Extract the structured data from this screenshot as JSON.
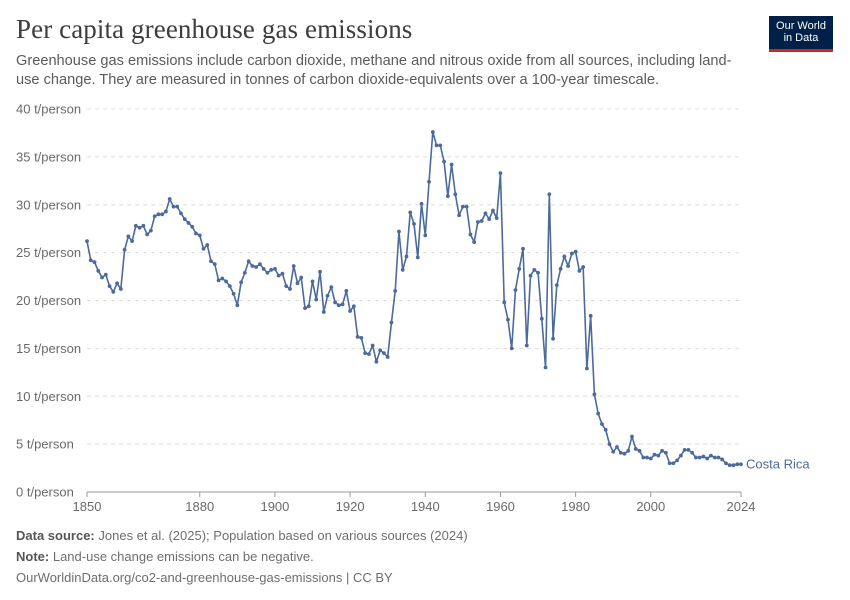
{
  "header": {
    "title": "Per capita greenhouse gas emissions",
    "subtitle": "Greenhouse gas emissions include carbon dioxide, methane and nitrous oxide from all sources, including land-use change. They are measured in tonnes of carbon dioxide-equivalents over a 100-year timescale."
  },
  "logo": {
    "line1": "Our World",
    "line2": "in Data",
    "bg_color": "#002147",
    "accent_color": "#ce261e"
  },
  "footer": {
    "source_label": "Data source:",
    "source_text": "Jones et al. (2025); Population based on various sources (2024)",
    "note_label": "Note:",
    "note_text": "Land-use change emissions can be negative.",
    "url_text": "OurWorldinData.org/co2-and-greenhouse-gas-emissions | CC BY"
  },
  "chart_data": {
    "type": "line",
    "xlabel": "",
    "ylabel": "",
    "xlim": [
      1850,
      2024
    ],
    "ylim": [
      0,
      40
    ],
    "x_ticks": [
      1850,
      1880,
      1900,
      1920,
      1940,
      1960,
      1980,
      2000,
      2024
    ],
    "y_ticks": [
      {
        "value": 0,
        "label": "0 t/person"
      },
      {
        "value": 5,
        "label": "5 t/person"
      },
      {
        "value": 10,
        "label": "10 t/person"
      },
      {
        "value": 15,
        "label": "15 t/person"
      },
      {
        "value": 20,
        "label": "20 t/person"
      },
      {
        "value": 25,
        "label": "25 t/person"
      },
      {
        "value": 30,
        "label": "30 t/person"
      },
      {
        "value": 35,
        "label": "35 t/person"
      },
      {
        "value": 40,
        "label": "40 t/person"
      }
    ],
    "grid": "horizontal-dashed",
    "series": [
      {
        "name": "Costa Rica",
        "color": "#4c6a9c",
        "x": [
          1850,
          1851,
          1852,
          1853,
          1854,
          1855,
          1856,
          1857,
          1858,
          1859,
          1860,
          1861,
          1862,
          1863,
          1864,
          1865,
          1866,
          1867,
          1868,
          1869,
          1870,
          1871,
          1872,
          1873,
          1874,
          1875,
          1876,
          1877,
          1878,
          1879,
          1880,
          1881,
          1882,
          1883,
          1884,
          1885,
          1886,
          1887,
          1888,
          1889,
          1890,
          1891,
          1892,
          1893,
          1894,
          1895,
          1896,
          1897,
          1898,
          1899,
          1900,
          1901,
          1902,
          1903,
          1904,
          1905,
          1906,
          1907,
          1908,
          1909,
          1910,
          1911,
          1912,
          1913,
          1914,
          1915,
          1916,
          1917,
          1918,
          1919,
          1920,
          1921,
          1922,
          1923,
          1924,
          1925,
          1926,
          1927,
          1928,
          1929,
          1930,
          1931,
          1932,
          1933,
          1934,
          1935,
          1936,
          1937,
          1938,
          1939,
          1940,
          1941,
          1942,
          1943,
          1944,
          1945,
          1946,
          1947,
          1948,
          1949,
          1950,
          1951,
          1952,
          1953,
          1954,
          1955,
          1956,
          1957,
          1958,
          1959,
          1960,
          1961,
          1962,
          1963,
          1964,
          1965,
          1966,
          1967,
          1968,
          1969,
          1970,
          1971,
          1972,
          1973,
          1974,
          1975,
          1976,
          1977,
          1978,
          1979,
          1980,
          1981,
          1982,
          1983,
          1984,
          1985,
          1986,
          1987,
          1988,
          1989,
          1990,
          1991,
          1992,
          1993,
          1994,
          1995,
          1996,
          1997,
          1998,
          1999,
          2000,
          2001,
          2002,
          2003,
          2004,
          2005,
          2006,
          2007,
          2008,
          2009,
          2010,
          2011,
          2012,
          2013,
          2014,
          2015,
          2016,
          2017,
          2018,
          2019,
          2020,
          2021,
          2022,
          2023,
          2024
        ],
        "values": [
          26.2,
          24.2,
          24.0,
          23.1,
          22.4,
          22.7,
          21.5,
          20.9,
          21.8,
          21.2,
          25.3,
          26.7,
          26.2,
          27.8,
          27.6,
          27.8,
          26.9,
          27.3,
          28.8,
          29.0,
          29.0,
          29.3,
          30.6,
          29.8,
          29.8,
          29.1,
          28.5,
          28.1,
          27.7,
          27.0,
          26.8,
          25.4,
          25.8,
          24.1,
          23.8,
          22.1,
          22.3,
          22.0,
          21.5,
          20.7,
          19.5,
          21.9,
          22.9,
          24.1,
          23.6,
          23.5,
          23.8,
          23.3,
          22.9,
          23.2,
          23.3,
          22.6,
          22.8,
          21.5,
          21.2,
          23.6,
          21.8,
          22.4,
          19.2,
          19.4,
          22.0,
          20.1,
          23.0,
          18.8,
          20.5,
          21.4,
          19.8,
          19.5,
          19.6,
          21.0,
          18.9,
          19.4,
          16.2,
          16.1,
          14.5,
          14.4,
          15.3,
          13.6,
          14.8,
          14.5,
          14.1,
          17.7,
          21.0,
          27.2,
          23.2,
          24.6,
          29.2,
          28.0,
          24.5,
          30.1,
          26.8,
          32.4,
          37.6,
          36.2,
          36.2,
          34.5,
          30.9,
          34.2,
          31.1,
          28.9,
          29.8,
          29.8,
          26.9,
          26.1,
          28.2,
          28.3,
          29.1,
          28.5,
          29.4,
          28.6,
          33.3,
          19.8,
          18.0,
          15.0,
          21.1,
          23.3,
          25.4,
          15.3,
          22.6,
          23.2,
          22.9,
          18.1,
          13.0,
          31.1,
          16.0,
          21.6,
          23.3,
          24.6,
          23.6,
          24.9,
          25.1,
          23.1,
          23.5,
          12.9,
          18.4,
          10.2,
          8.2,
          7.1,
          6.5,
          5.0,
          4.2,
          4.7,
          4.1,
          4.0,
          4.3,
          5.8,
          4.5,
          4.3,
          3.6,
          3.6,
          3.5,
          3.9,
          3.8,
          4.3,
          4.1,
          3.0,
          3.0,
          3.3,
          3.8,
          4.4,
          4.4,
          4.1,
          3.6,
          3.6,
          3.7,
          3.5,
          3.8,
          3.6,
          3.6,
          3.4,
          3.0,
          2.8,
          2.8,
          2.9,
          2.9
        ]
      }
    ]
  }
}
